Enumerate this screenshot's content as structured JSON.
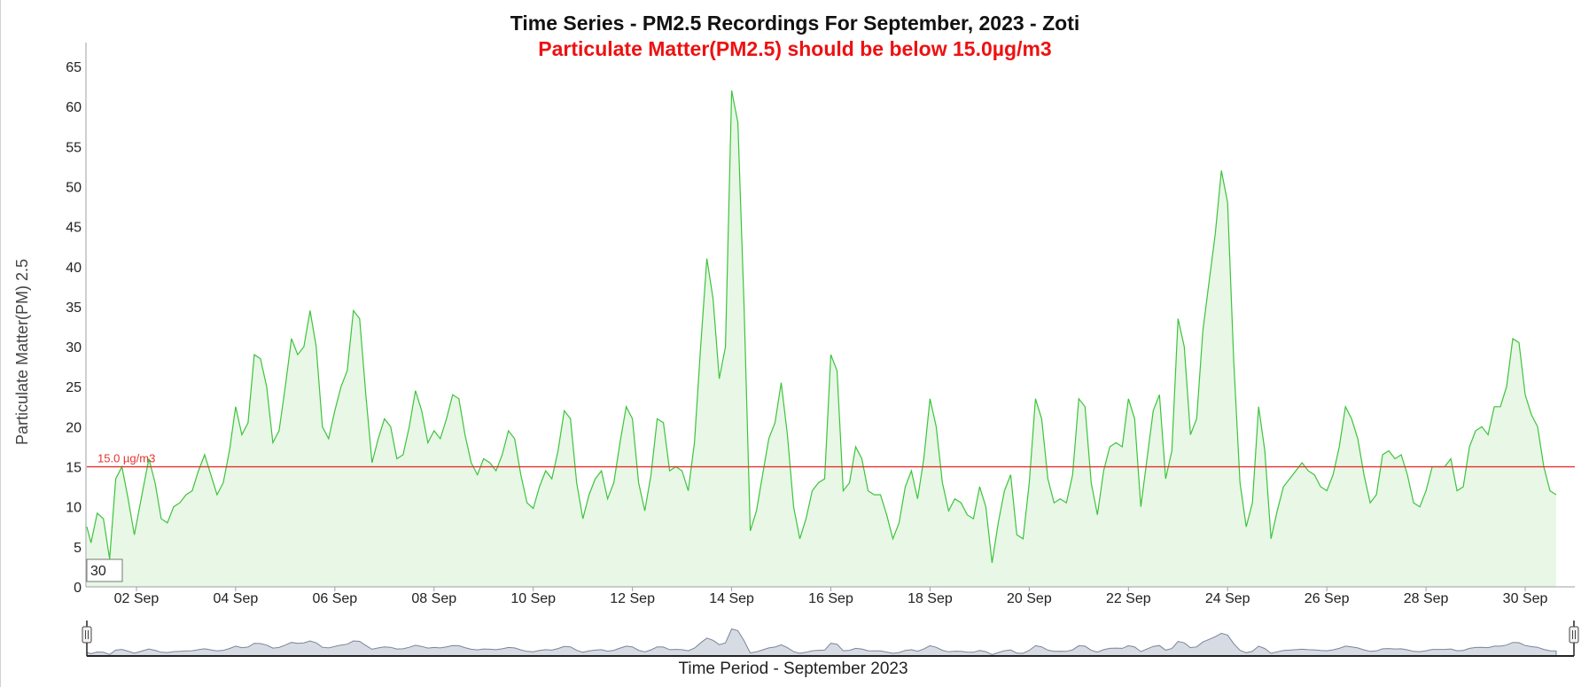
{
  "chart_data": {
    "type": "area",
    "title": "Time Series - PM2.5 Recordings For September, 2023 - Zoti",
    "subtitle": "Particulate Matter(PM2.5) should be below 15.0µg/m3",
    "xlabel": "Time Period - September 2023",
    "ylabel": "Particulate Matter(PM) 2.5",
    "ylim": [
      0,
      68
    ],
    "yticks": [
      0,
      5,
      10,
      15,
      20,
      25,
      30,
      35,
      40,
      45,
      50,
      55,
      60,
      65
    ],
    "xlim": [
      "2023-09-01T00:00",
      "2023-10-01T00:00"
    ],
    "xticks": [
      {
        "date": "2023-09-02",
        "label": "02 Sep"
      },
      {
        "date": "2023-09-04",
        "label": "04 Sep"
      },
      {
        "date": "2023-09-06",
        "label": "06 Sep"
      },
      {
        "date": "2023-09-08",
        "label": "08 Sep"
      },
      {
        "date": "2023-09-10",
        "label": "10 Sep"
      },
      {
        "date": "2023-09-12",
        "label": "12 Sep"
      },
      {
        "date": "2023-09-14",
        "label": "14 Sep"
      },
      {
        "date": "2023-09-16",
        "label": "16 Sep"
      },
      {
        "date": "2023-09-18",
        "label": "18 Sep"
      },
      {
        "date": "2023-09-20",
        "label": "20 Sep"
      },
      {
        "date": "2023-09-22",
        "label": "22 Sep"
      },
      {
        "date": "2023-09-24",
        "label": "24 Sep"
      },
      {
        "date": "2023-09-26",
        "label": "26 Sep"
      },
      {
        "date": "2023-09-28",
        "label": "28 Sep"
      },
      {
        "date": "2023-09-30",
        "label": "30 Sep"
      }
    ],
    "threshold": {
      "value": 15.0,
      "label": "15.0 µg/m3",
      "color": "#e3342f"
    },
    "tooltip_text": "30",
    "line_color": "#3cc43c",
    "fill_color": "#e8f7e6",
    "navigator_color": "#7b8599",
    "series": [
      {
        "points": [
          [
            "2023-09-01T00:00",
            7.5
          ],
          [
            "2023-09-01T02:00",
            5.5
          ],
          [
            "2023-09-01T05:00",
            9.2
          ],
          [
            "2023-09-01T08:00",
            8.5
          ],
          [
            "2023-09-01T11:00",
            3.5
          ],
          [
            "2023-09-01T14:00",
            13.5
          ],
          [
            "2023-09-01T17:00",
            15.0
          ],
          [
            "2023-09-01T20:00",
            11.0
          ],
          [
            "2023-09-01T23:00",
            6.5
          ],
          [
            "2023-09-02T03:00",
            12.0
          ],
          [
            "2023-09-02T06:00",
            16.0
          ],
          [
            "2023-09-02T09:00",
            13.0
          ],
          [
            "2023-09-02T12:00",
            8.5
          ],
          [
            "2023-09-02T15:00",
            8.0
          ],
          [
            "2023-09-02T18:00",
            10.0
          ],
          [
            "2023-09-02T21:00",
            10.5
          ],
          [
            "2023-09-03T00:00",
            11.5
          ],
          [
            "2023-09-03T03:00",
            12.0
          ],
          [
            "2023-09-03T06:00",
            14.5
          ],
          [
            "2023-09-03T09:00",
            16.5
          ],
          [
            "2023-09-03T12:00",
            14.0
          ],
          [
            "2023-09-03T15:00",
            11.5
          ],
          [
            "2023-09-03T18:00",
            13.0
          ],
          [
            "2023-09-03T21:00",
            17.0
          ],
          [
            "2023-09-04T00:00",
            22.5
          ],
          [
            "2023-09-04T03:00",
            19.0
          ],
          [
            "2023-09-04T06:00",
            20.5
          ],
          [
            "2023-09-04T09:00",
            29.0
          ],
          [
            "2023-09-04T12:00",
            28.5
          ],
          [
            "2023-09-04T15:00",
            25.0
          ],
          [
            "2023-09-04T18:00",
            18.0
          ],
          [
            "2023-09-04T21:00",
            19.5
          ],
          [
            "2023-09-05T00:00",
            25.0
          ],
          [
            "2023-09-05T03:00",
            31.0
          ],
          [
            "2023-09-05T06:00",
            29.0
          ],
          [
            "2023-09-05T09:00",
            30.0
          ],
          [
            "2023-09-05T12:00",
            34.5
          ],
          [
            "2023-09-05T15:00",
            30.0
          ],
          [
            "2023-09-05T18:00",
            20.0
          ],
          [
            "2023-09-05T21:00",
            18.5
          ],
          [
            "2023-09-06T00:00",
            22.0
          ],
          [
            "2023-09-06T03:00",
            25.0
          ],
          [
            "2023-09-06T06:00",
            27.0
          ],
          [
            "2023-09-06T09:00",
            34.5
          ],
          [
            "2023-09-06T12:00",
            33.5
          ],
          [
            "2023-09-06T15:00",
            24.0
          ],
          [
            "2023-09-06T18:00",
            15.5
          ],
          [
            "2023-09-06T21:00",
            18.5
          ],
          [
            "2023-09-07T00:00",
            21.0
          ],
          [
            "2023-09-07T03:00",
            20.0
          ],
          [
            "2023-09-07T06:00",
            16.0
          ],
          [
            "2023-09-07T09:00",
            16.5
          ],
          [
            "2023-09-07T12:00",
            20.0
          ],
          [
            "2023-09-07T15:00",
            24.5
          ],
          [
            "2023-09-07T18:00",
            22.0
          ],
          [
            "2023-09-07T21:00",
            18.0
          ],
          [
            "2023-09-08T00:00",
            19.5
          ],
          [
            "2023-09-08T03:00",
            18.5
          ],
          [
            "2023-09-08T06:00",
            21.0
          ],
          [
            "2023-09-08T09:00",
            24.0
          ],
          [
            "2023-09-08T12:00",
            23.5
          ],
          [
            "2023-09-08T15:00",
            19.0
          ],
          [
            "2023-09-08T18:00",
            15.5
          ],
          [
            "2023-09-08T21:00",
            14.0
          ],
          [
            "2023-09-09T00:00",
            16.0
          ],
          [
            "2023-09-09T03:00",
            15.5
          ],
          [
            "2023-09-09T06:00",
            14.5
          ],
          [
            "2023-09-09T09:00",
            16.5
          ],
          [
            "2023-09-09T12:00",
            19.5
          ],
          [
            "2023-09-09T15:00",
            18.5
          ],
          [
            "2023-09-09T18:00",
            14.0
          ],
          [
            "2023-09-09T21:00",
            10.5
          ],
          [
            "2023-09-10T00:00",
            9.8
          ],
          [
            "2023-09-10T03:00",
            12.5
          ],
          [
            "2023-09-10T06:00",
            14.5
          ],
          [
            "2023-09-10T09:00",
            13.5
          ],
          [
            "2023-09-10T12:00",
            17.0
          ],
          [
            "2023-09-10T15:00",
            22.0
          ],
          [
            "2023-09-10T18:00",
            21.0
          ],
          [
            "2023-09-10T21:00",
            13.0
          ],
          [
            "2023-09-11T00:00",
            8.5
          ],
          [
            "2023-09-11T03:00",
            11.5
          ],
          [
            "2023-09-11T06:00",
            13.5
          ],
          [
            "2023-09-11T09:00",
            14.5
          ],
          [
            "2023-09-11T12:00",
            11.0
          ],
          [
            "2023-09-11T15:00",
            13.0
          ],
          [
            "2023-09-11T18:00",
            18.0
          ],
          [
            "2023-09-11T21:00",
            22.5
          ],
          [
            "2023-09-12T00:00",
            21.0
          ],
          [
            "2023-09-12T03:00",
            13.0
          ],
          [
            "2023-09-12T06:00",
            9.5
          ],
          [
            "2023-09-12T09:00",
            14.0
          ],
          [
            "2023-09-12T12:00",
            21.0
          ],
          [
            "2023-09-12T15:00",
            20.5
          ],
          [
            "2023-09-12T18:00",
            14.5
          ],
          [
            "2023-09-12T21:00",
            15.0
          ],
          [
            "2023-09-13T00:00",
            14.5
          ],
          [
            "2023-09-13T03:00",
            12.0
          ],
          [
            "2023-09-13T06:00",
            18.0
          ],
          [
            "2023-09-13T09:00",
            30.0
          ],
          [
            "2023-09-13T12:00",
            41.0
          ],
          [
            "2023-09-13T15:00",
            36.0
          ],
          [
            "2023-09-13T18:00",
            26.0
          ],
          [
            "2023-09-13T21:00",
            30.0
          ],
          [
            "2023-09-14T00:00",
            62.0
          ],
          [
            "2023-09-14T03:00",
            58.0
          ],
          [
            "2023-09-14T06:00",
            35.0
          ],
          [
            "2023-09-14T09:00",
            7.0
          ],
          [
            "2023-09-14T12:00",
            9.5
          ],
          [
            "2023-09-14T15:00",
            14.0
          ],
          [
            "2023-09-14T18:00",
            18.5
          ],
          [
            "2023-09-14T21:00",
            20.5
          ],
          [
            "2023-09-15T00:00",
            25.5
          ],
          [
            "2023-09-15T03:00",
            19.0
          ],
          [
            "2023-09-15T06:00",
            10.0
          ],
          [
            "2023-09-15T09:00",
            6.0
          ],
          [
            "2023-09-15T12:00",
            8.5
          ],
          [
            "2023-09-15T15:00",
            12.0
          ],
          [
            "2023-09-15T18:00",
            13.0
          ],
          [
            "2023-09-15T21:00",
            13.5
          ],
          [
            "2023-09-16T00:00",
            29.0
          ],
          [
            "2023-09-16T03:00",
            27.0
          ],
          [
            "2023-09-16T06:00",
            12.0
          ],
          [
            "2023-09-16T09:00",
            13.0
          ],
          [
            "2023-09-16T12:00",
            17.5
          ],
          [
            "2023-09-16T15:00",
            16.0
          ],
          [
            "2023-09-16T18:00",
            12.0
          ],
          [
            "2023-09-16T21:00",
            11.5
          ],
          [
            "2023-09-17T00:00",
            11.5
          ],
          [
            "2023-09-17T03:00",
            9.0
          ],
          [
            "2023-09-17T06:00",
            6.0
          ],
          [
            "2023-09-17T09:00",
            8.0
          ],
          [
            "2023-09-17T12:00",
            12.5
          ],
          [
            "2023-09-17T15:00",
            14.5
          ],
          [
            "2023-09-17T18:00",
            11.0
          ],
          [
            "2023-09-17T21:00",
            16.0
          ],
          [
            "2023-09-18T00:00",
            23.5
          ],
          [
            "2023-09-18T03:00",
            20.0
          ],
          [
            "2023-09-18T06:00",
            13.0
          ],
          [
            "2023-09-18T09:00",
            9.5
          ],
          [
            "2023-09-18T12:00",
            11.0
          ],
          [
            "2023-09-18T15:00",
            10.5
          ],
          [
            "2023-09-18T18:00",
            9.0
          ],
          [
            "2023-09-18T21:00",
            8.5
          ],
          [
            "2023-09-19T00:00",
            12.5
          ],
          [
            "2023-09-19T03:00",
            10.0
          ],
          [
            "2023-09-19T06:00",
            3.0
          ],
          [
            "2023-09-19T09:00",
            8.0
          ],
          [
            "2023-09-19T12:00",
            12.0
          ],
          [
            "2023-09-19T15:00",
            14.0
          ],
          [
            "2023-09-19T18:00",
            6.5
          ],
          [
            "2023-09-19T21:00",
            6.0
          ],
          [
            "2023-09-20T00:00",
            13.0
          ],
          [
            "2023-09-20T03:00",
            23.5
          ],
          [
            "2023-09-20T06:00",
            21.0
          ],
          [
            "2023-09-20T09:00",
            13.5
          ],
          [
            "2023-09-20T12:00",
            10.5
          ],
          [
            "2023-09-20T15:00",
            11.0
          ],
          [
            "2023-09-20T18:00",
            10.5
          ],
          [
            "2023-09-20T21:00",
            14.0
          ],
          [
            "2023-09-21T00:00",
            23.5
          ],
          [
            "2023-09-21T03:00",
            22.5
          ],
          [
            "2023-09-21T06:00",
            13.0
          ],
          [
            "2023-09-21T09:00",
            9.0
          ],
          [
            "2023-09-21T12:00",
            14.5
          ],
          [
            "2023-09-21T15:00",
            17.5
          ],
          [
            "2023-09-21T18:00",
            18.0
          ],
          [
            "2023-09-21T21:00",
            17.5
          ],
          [
            "2023-09-22T00:00",
            23.5
          ],
          [
            "2023-09-22T03:00",
            21.0
          ],
          [
            "2023-09-22T06:00",
            10.0
          ],
          [
            "2023-09-22T09:00",
            16.0
          ],
          [
            "2023-09-22T12:00",
            22.0
          ],
          [
            "2023-09-22T15:00",
            24.0
          ],
          [
            "2023-09-22T18:00",
            13.5
          ],
          [
            "2023-09-22T21:00",
            17.0
          ],
          [
            "2023-09-23T00:00",
            33.5
          ],
          [
            "2023-09-23T03:00",
            30.0
          ],
          [
            "2023-09-23T06:00",
            19.0
          ],
          [
            "2023-09-23T09:00",
            21.0
          ],
          [
            "2023-09-23T12:00",
            32.0
          ],
          [
            "2023-09-23T15:00",
            38.0
          ],
          [
            "2023-09-23T18:00",
            44.0
          ],
          [
            "2023-09-23T21:00",
            52.0
          ],
          [
            "2023-09-24T00:00",
            48.0
          ],
          [
            "2023-09-24T03:00",
            28.0
          ],
          [
            "2023-09-24T06:00",
            13.0
          ],
          [
            "2023-09-24T09:00",
            7.5
          ],
          [
            "2023-09-24T12:00",
            10.5
          ],
          [
            "2023-09-24T15:00",
            22.5
          ],
          [
            "2023-09-24T18:00",
            17.0
          ],
          [
            "2023-09-24T21:00",
            6.0
          ],
          [
            "2023-09-25T00:00",
            9.5
          ],
          [
            "2023-09-25T03:00",
            12.5
          ],
          [
            "2023-09-25T06:00",
            13.5
          ],
          [
            "2023-09-25T09:00",
            14.5
          ],
          [
            "2023-09-25T12:00",
            15.5
          ],
          [
            "2023-09-25T15:00",
            14.5
          ],
          [
            "2023-09-25T18:00",
            14.0
          ],
          [
            "2023-09-25T21:00",
            12.5
          ],
          [
            "2023-09-26T00:00",
            12.0
          ],
          [
            "2023-09-26T03:00",
            14.0
          ],
          [
            "2023-09-26T06:00",
            17.5
          ],
          [
            "2023-09-26T09:00",
            22.5
          ],
          [
            "2023-09-26T12:00",
            21.0
          ],
          [
            "2023-09-26T15:00",
            18.5
          ],
          [
            "2023-09-26T18:00",
            14.0
          ],
          [
            "2023-09-26T21:00",
            10.5
          ],
          [
            "2023-09-27T00:00",
            11.5
          ],
          [
            "2023-09-27T03:00",
            16.5
          ],
          [
            "2023-09-27T06:00",
            17.0
          ],
          [
            "2023-09-27T09:00",
            16.0
          ],
          [
            "2023-09-27T12:00",
            16.5
          ],
          [
            "2023-09-27T15:00",
            14.0
          ],
          [
            "2023-09-27T18:00",
            10.5
          ],
          [
            "2023-09-27T21:00",
            10.0
          ],
          [
            "2023-09-28T00:00",
            12.0
          ],
          [
            "2023-09-28T03:00",
            15.0
          ],
          [
            "2023-09-28T06:00",
            15.0
          ],
          [
            "2023-09-28T09:00",
            15.0
          ],
          [
            "2023-09-28T12:00",
            16.0
          ],
          [
            "2023-09-28T15:00",
            12.0
          ],
          [
            "2023-09-28T18:00",
            12.5
          ],
          [
            "2023-09-28T21:00",
            17.5
          ],
          [
            "2023-09-29T00:00",
            19.5
          ],
          [
            "2023-09-29T03:00",
            20.0
          ],
          [
            "2023-09-29T06:00",
            19.0
          ],
          [
            "2023-09-29T09:00",
            22.5
          ],
          [
            "2023-09-29T12:00",
            22.5
          ],
          [
            "2023-09-29T15:00",
            25.0
          ],
          [
            "2023-09-29T18:00",
            31.0
          ],
          [
            "2023-09-29T21:00",
            30.5
          ],
          [
            "2023-09-30T00:00",
            24.0
          ],
          [
            "2023-09-30T03:00",
            21.5
          ],
          [
            "2023-09-30T06:00",
            20.0
          ],
          [
            "2023-09-30T09:00",
            15.0
          ],
          [
            "2023-09-30T12:00",
            12.0
          ],
          [
            "2023-09-30T15:00",
            11.5
          ]
        ]
      }
    ]
  }
}
